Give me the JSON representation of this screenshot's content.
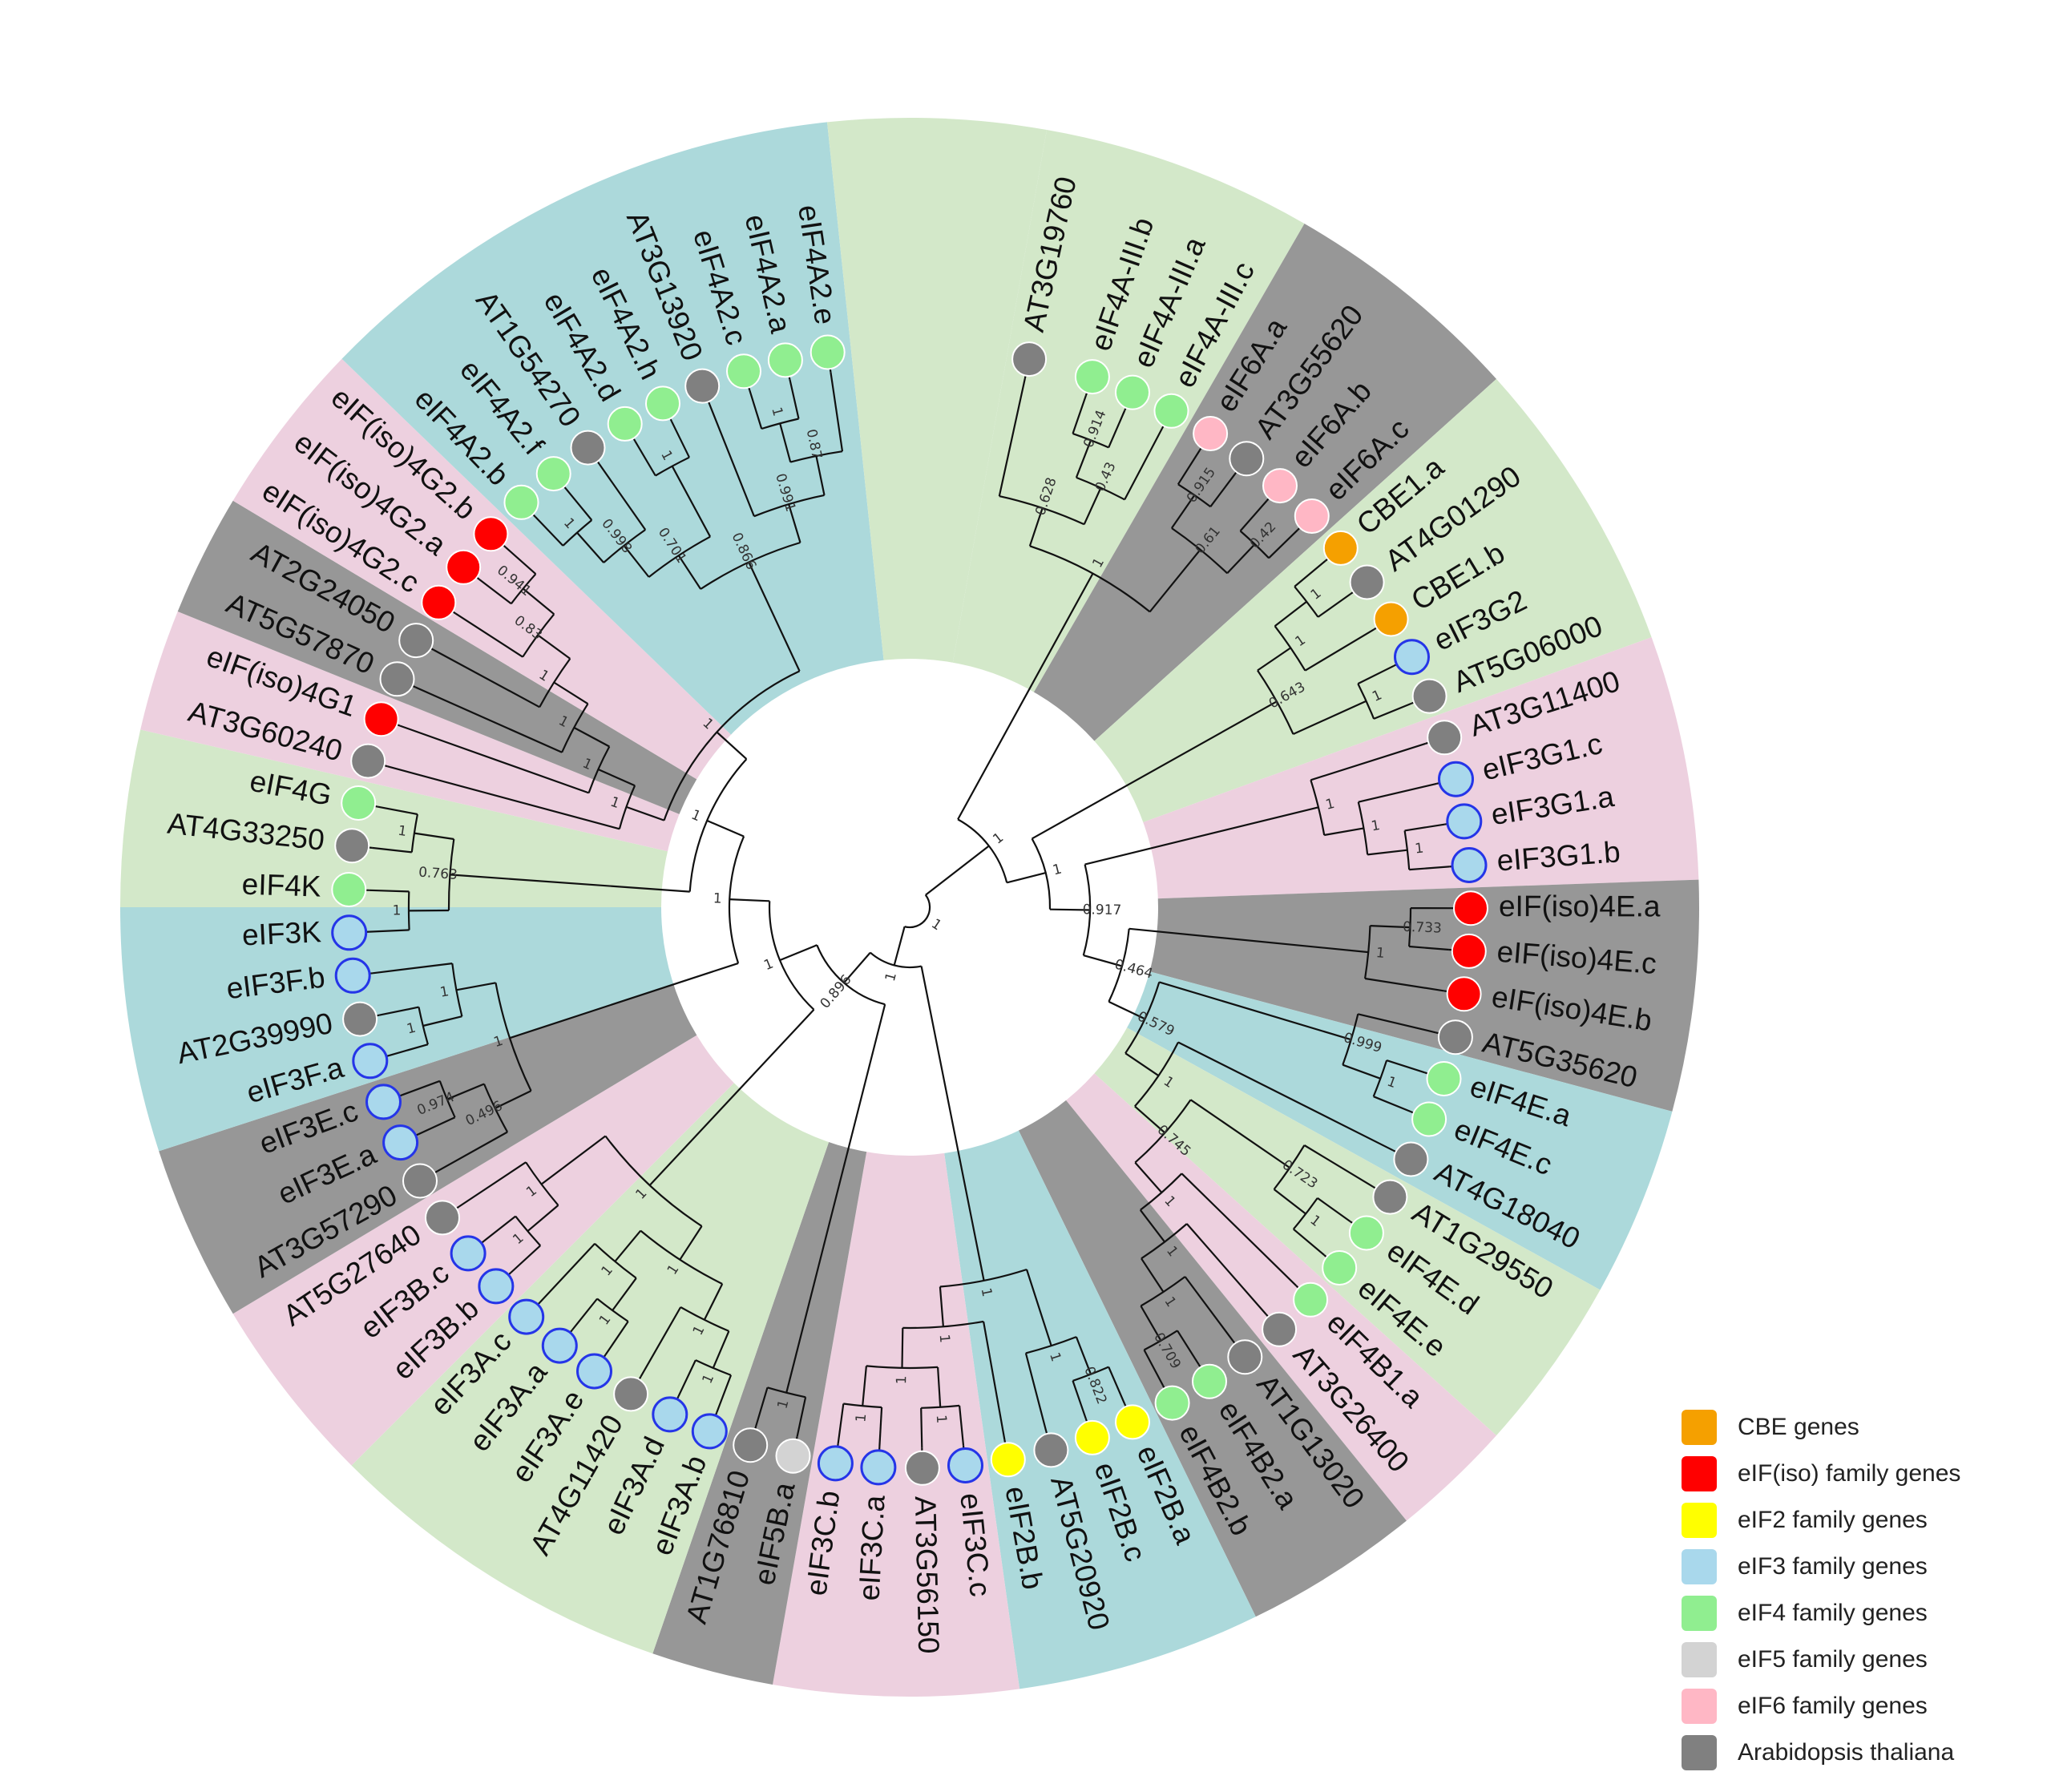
{
  "figure": {
    "kind": "circular phylogenetic tree"
  },
  "colors": {
    "sectors": {
      "green": "#d3e8c9",
      "gray": "#979797",
      "pink": "#edd0df",
      "cyan": "#acd9db"
    },
    "markers": {
      "cbe": "#f5a000",
      "iso": "#ff0000",
      "eif2": "#ffff00",
      "eif3": "#a9d8ec",
      "eif4": "#90ee90",
      "eif5": "#d3d3d3",
      "eif6": "#ffb7c5",
      "ath": "#808080"
    },
    "eif3_ring": "#2535e8"
  },
  "tips": [
    {
      "label": "AT3G19760",
      "marker": "ath",
      "angle": -77.7
    },
    {
      "label": "eIF4A-III.b",
      "marker": "eif4",
      "angle": -71.0
    },
    {
      "label": "eIF4A-III.a",
      "marker": "eif4",
      "angle": -66.6
    },
    {
      "label": "eIF4A-III.c",
      "marker": "eif4",
      "angle": -62.2
    },
    {
      "label": "eIF6A.a",
      "marker": "eif6",
      "angle": -57.6
    },
    {
      "label": "AT3G55620",
      "marker": "ath",
      "angle": -53.1
    },
    {
      "label": "eIF6A.b",
      "marker": "eif6",
      "angle": -48.7
    },
    {
      "label": "eIF6A.c",
      "marker": "eif6",
      "angle": -44.2
    },
    {
      "label": "CBE1.a",
      "marker": "cbe",
      "angle": -39.8
    },
    {
      "label": "AT4G01290",
      "marker": "ath",
      "angle": -35.4
    },
    {
      "label": "CBE1.b",
      "marker": "cbe",
      "angle": -30.9
    },
    {
      "label": "eIF3G2",
      "marker": "eif3",
      "angle": -26.5
    },
    {
      "label": "AT5G06000",
      "marker": "ath",
      "angle": -22.1
    },
    {
      "label": "AT3G11400",
      "marker": "ath",
      "angle": -17.6
    },
    {
      "label": "eIF3G1.c",
      "marker": "eif3",
      "angle": -13.2
    },
    {
      "label": "eIF3G1.a",
      "marker": "eif3",
      "angle": -8.8
    },
    {
      "label": "eIF3G1.b",
      "marker": "eif3",
      "angle": -4.3
    },
    {
      "label": "eIF(iso)4E.a",
      "marker": "iso",
      "angle": 0.1
    },
    {
      "label": "eIF(iso)4E.c",
      "marker": "iso",
      "angle": 4.5
    },
    {
      "label": "eIF(iso)4E.b",
      "marker": "iso",
      "angle": 8.9
    },
    {
      "label": "AT5G35620",
      "marker": "ath",
      "angle": 13.4
    },
    {
      "label": "eIF4E.a",
      "marker": "eif4",
      "angle": 17.8
    },
    {
      "label": "eIF4E.c",
      "marker": "eif4",
      "angle": 22.2
    },
    {
      "label": "AT4G18040",
      "marker": "ath",
      "angle": 26.7
    },
    {
      "label": "AT1G29550",
      "marker": "ath",
      "angle": 31.1
    },
    {
      "label": "eIF4E.d",
      "marker": "eif4",
      "angle": 35.5
    },
    {
      "label": "eIF4E.e",
      "marker": "eif4",
      "angle": 40.0
    },
    {
      "label": "eIF4B1.a",
      "marker": "eif4",
      "angle": 44.4
    },
    {
      "label": "AT3G26400",
      "marker": "ath",
      "angle": 48.8
    },
    {
      "label": "AT1G13020",
      "marker": "ath",
      "angle": 53.3
    },
    {
      "label": "eIF4B2.a",
      "marker": "eif4",
      "angle": 57.7
    },
    {
      "label": "eIF4B2.b",
      "marker": "eif4",
      "angle": 62.1
    },
    {
      "label": "eIF2B.a",
      "marker": "eif2",
      "angle": 66.6
    },
    {
      "label": "eIF2B.c",
      "marker": "eif2",
      "angle": 71.0
    },
    {
      "label": "AT5G20920",
      "marker": "ath",
      "angle": 75.4
    },
    {
      "label": "eIF2B.b",
      "marker": "eif2",
      "angle": 79.9
    },
    {
      "label": "eIF3C.c",
      "marker": "eif3",
      "angle": 84.3
    },
    {
      "label": "AT3G56150",
      "marker": "ath",
      "angle": 88.7
    },
    {
      "label": "eIF3C.a",
      "marker": "eif3",
      "angle": 93.2
    },
    {
      "label": "eIF3C.b",
      "marker": "eif3",
      "angle": 97.6
    },
    {
      "label": "eIF5B.a",
      "marker": "eif5",
      "angle": 102.0
    },
    {
      "label": "AT1G76810",
      "marker": "ath",
      "angle": 106.5
    },
    {
      "label": "eIF3A.b",
      "marker": "eif3",
      "angle": 110.9
    },
    {
      "label": "eIF3A.d",
      "marker": "eif3",
      "angle": 115.3
    },
    {
      "label": "AT4G11420",
      "marker": "ath",
      "angle": 119.8
    },
    {
      "label": "eIF3A.e",
      "marker": "eif3",
      "angle": 124.2
    },
    {
      "label": "eIF3A.a",
      "marker": "eif3",
      "angle": 128.6
    },
    {
      "label": "eIF3A.c",
      "marker": "eif3",
      "angle": 133.1
    },
    {
      "label": "eIF3B.b",
      "marker": "eif3",
      "angle": 137.5
    },
    {
      "label": "eIF3B.c",
      "marker": "eif3",
      "angle": 141.9
    },
    {
      "label": "AT5G27640",
      "marker": "ath",
      "angle": 146.4
    },
    {
      "label": "AT3G57290",
      "marker": "ath",
      "angle": 150.8
    },
    {
      "label": "eIF3E.a",
      "marker": "eif3",
      "angle": 155.2
    },
    {
      "label": "eIF3E.c",
      "marker": "eif3",
      "angle": 159.7
    },
    {
      "label": "eIF3F.a",
      "marker": "eif3",
      "angle": 164.1
    },
    {
      "label": "AT2G39990",
      "marker": "ath",
      "angle": 168.5
    },
    {
      "label": "eIF3F.b",
      "marker": "eif3",
      "angle": 173.0
    },
    {
      "label": "eIF3K",
      "marker": "eif3",
      "angle": 177.4
    },
    {
      "label": "eIF4K",
      "marker": "eif4",
      "angle": 181.8
    },
    {
      "label": "AT4G33250",
      "marker": "ath",
      "angle": 186.3
    },
    {
      "label": "eIF4G",
      "marker": "eif4",
      "angle": 190.7
    },
    {
      "label": "AT3G60240",
      "marker": "ath",
      "angle": 195.1
    },
    {
      "label": "eIF(iso)4G1",
      "marker": "iso",
      "angle": 199.6
    },
    {
      "label": "AT5G57870",
      "marker": "ath",
      "angle": 204.0
    },
    {
      "label": "AT2G24050",
      "marker": "ath",
      "angle": 208.4
    },
    {
      "label": "eIF(iso)4G2.c",
      "marker": "iso",
      "angle": 212.9
    },
    {
      "label": "eIF(iso)4G2.a",
      "marker": "iso",
      "angle": 217.3
    },
    {
      "label": "eIF(iso)4G2.b",
      "marker": "iso",
      "angle": 221.7
    },
    {
      "label": "eIF4A2.b",
      "marker": "eif4",
      "angle": 226.2
    },
    {
      "label": "eIF4A2.f",
      "marker": "eif4",
      "angle": 230.6
    },
    {
      "label": "AT1G54270",
      "marker": "ath",
      "angle": 235.0
    },
    {
      "label": "eIF4A2.d",
      "marker": "eif4",
      "angle": 239.5
    },
    {
      "label": "eIF4A2.h",
      "marker": "eif4",
      "angle": 243.9
    },
    {
      "label": "AT3G13920",
      "marker": "ath",
      "angle": 248.3
    },
    {
      "label": "eIF4A2.c",
      "marker": "eif4",
      "angle": 252.8
    },
    {
      "label": "eIF4A2.a",
      "marker": "eif4",
      "angle": 257.2
    },
    {
      "label": "eIF4A2.e",
      "marker": "eif4",
      "angle": 261.6
    }
  ],
  "sectors": [
    {
      "color": "green",
      "from": -80,
      "to": -60
    },
    {
      "color": "gray",
      "from": -60,
      "to": -42
    },
    {
      "color": "green",
      "from": -42,
      "to": -20
    },
    {
      "color": "pink",
      "from": -20,
      "to": -2
    },
    {
      "color": "gray",
      "from": -2,
      "to": 15
    },
    {
      "color": "cyan",
      "from": 15,
      "to": 29
    },
    {
      "color": "green",
      "from": 29,
      "to": 42
    },
    {
      "color": "pink",
      "from": 42,
      "to": 51
    },
    {
      "color": "gray",
      "from": 51,
      "to": 64
    },
    {
      "color": "cyan",
      "from": 64,
      "to": 82
    },
    {
      "color": "pink",
      "from": 82,
      "to": 100
    },
    {
      "color": "gray",
      "from": 100,
      "to": 109
    },
    {
      "color": "green",
      "from": 109,
      "to": 135
    },
    {
      "color": "pink",
      "from": 135,
      "to": 149
    },
    {
      "color": "gray",
      "from": 149,
      "to": 162
    },
    {
      "color": "cyan",
      "from": 162,
      "to": 180
    },
    {
      "color": "green",
      "from": 180,
      "to": 193
    },
    {
      "color": "pink",
      "from": 193,
      "to": 202
    },
    {
      "color": "gray",
      "from": 202,
      "to": 211
    },
    {
      "color": "pink",
      "from": 211,
      "to": 224
    },
    {
      "color": "cyan",
      "from": 224,
      "to": 264
    },
    {
      "color": "green",
      "from": 264,
      "to": 280
    }
  ],
  "bootstrap_values": [
    "0.914",
    "0.43",
    "0.628",
    "0.915",
    "0.42",
    "0.61",
    "1",
    "1",
    "1",
    "1",
    "0.643",
    "1",
    "1",
    "1",
    "0.733",
    "1",
    "1",
    "0.999",
    "1",
    "0.723",
    "0.709",
    "1",
    "1",
    "1",
    "0.745",
    "1",
    "0.579",
    "0.464",
    "0.917",
    "1",
    "1",
    "0.822",
    "1",
    "1",
    "1",
    "1",
    "1",
    "1",
    "1",
    "1",
    "1",
    "1",
    "1",
    "1",
    "1",
    "1",
    "1",
    "0.974",
    "0.496",
    "1",
    "1",
    "1",
    "1",
    "1",
    "0.763",
    "0.941",
    "0.83",
    "1",
    "1",
    "1",
    "1",
    "1",
    "0.998",
    "1",
    "0.701",
    "1",
    "0.87",
    "0.991",
    "0.866",
    "1",
    "1",
    "1",
    "1",
    "0.896",
    "1",
    "1",
    "1",
    "1",
    "1",
    "1"
  ],
  "legend": [
    {
      "label": "CBE genes",
      "marker": "cbe"
    },
    {
      "label": "eIF(iso) family genes",
      "marker": "iso"
    },
    {
      "label": "eIF2 family genes",
      "marker": "eif2"
    },
    {
      "label": "eIF3 family genes",
      "marker": "eif3"
    },
    {
      "label": "eIF4 family genes",
      "marker": "eif4"
    },
    {
      "label": "eIF5 family genes",
      "marker": "eif5"
    },
    {
      "label": "eIF6 family genes",
      "marker": "eif6"
    },
    {
      "label": "Arabidopsis thaliana",
      "marker": "ath"
    }
  ]
}
